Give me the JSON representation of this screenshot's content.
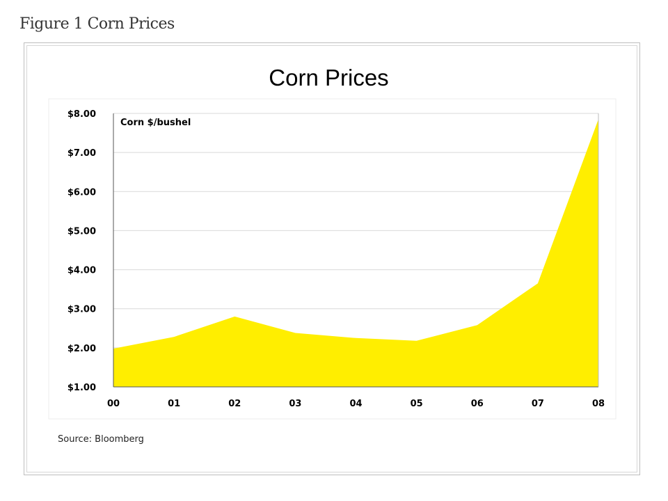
{
  "figure_caption": "Figure 1 Corn Prices",
  "source": "Source: Bloomberg",
  "colors": {
    "area_fill": "#ffee00",
    "grid": "#d9d9d9",
    "axis": "#555555",
    "text": "#000000"
  },
  "chart_data": {
    "type": "area",
    "title": "Corn Prices",
    "annotation": "Corn $/bushel",
    "categories": [
      "00",
      "01",
      "02",
      "03",
      "04",
      "05",
      "06",
      "07",
      "08"
    ],
    "series": [
      {
        "values": [
          1.98,
          2.28,
          2.8,
          2.38,
          2.25,
          2.18,
          2.58,
          3.65,
          7.85
        ]
      }
    ],
    "ylim": [
      1.0,
      8.0
    ],
    "y_ticks": [
      1.0,
      2.0,
      3.0,
      4.0,
      5.0,
      6.0,
      7.0,
      8.0
    ],
    "y_tick_labels": [
      "$1.00",
      "$2.00",
      "$3.00",
      "$4.00",
      "$5.00",
      "$6.00",
      "$7.00",
      "$8.00"
    ],
    "grid": true,
    "legend": "none"
  }
}
